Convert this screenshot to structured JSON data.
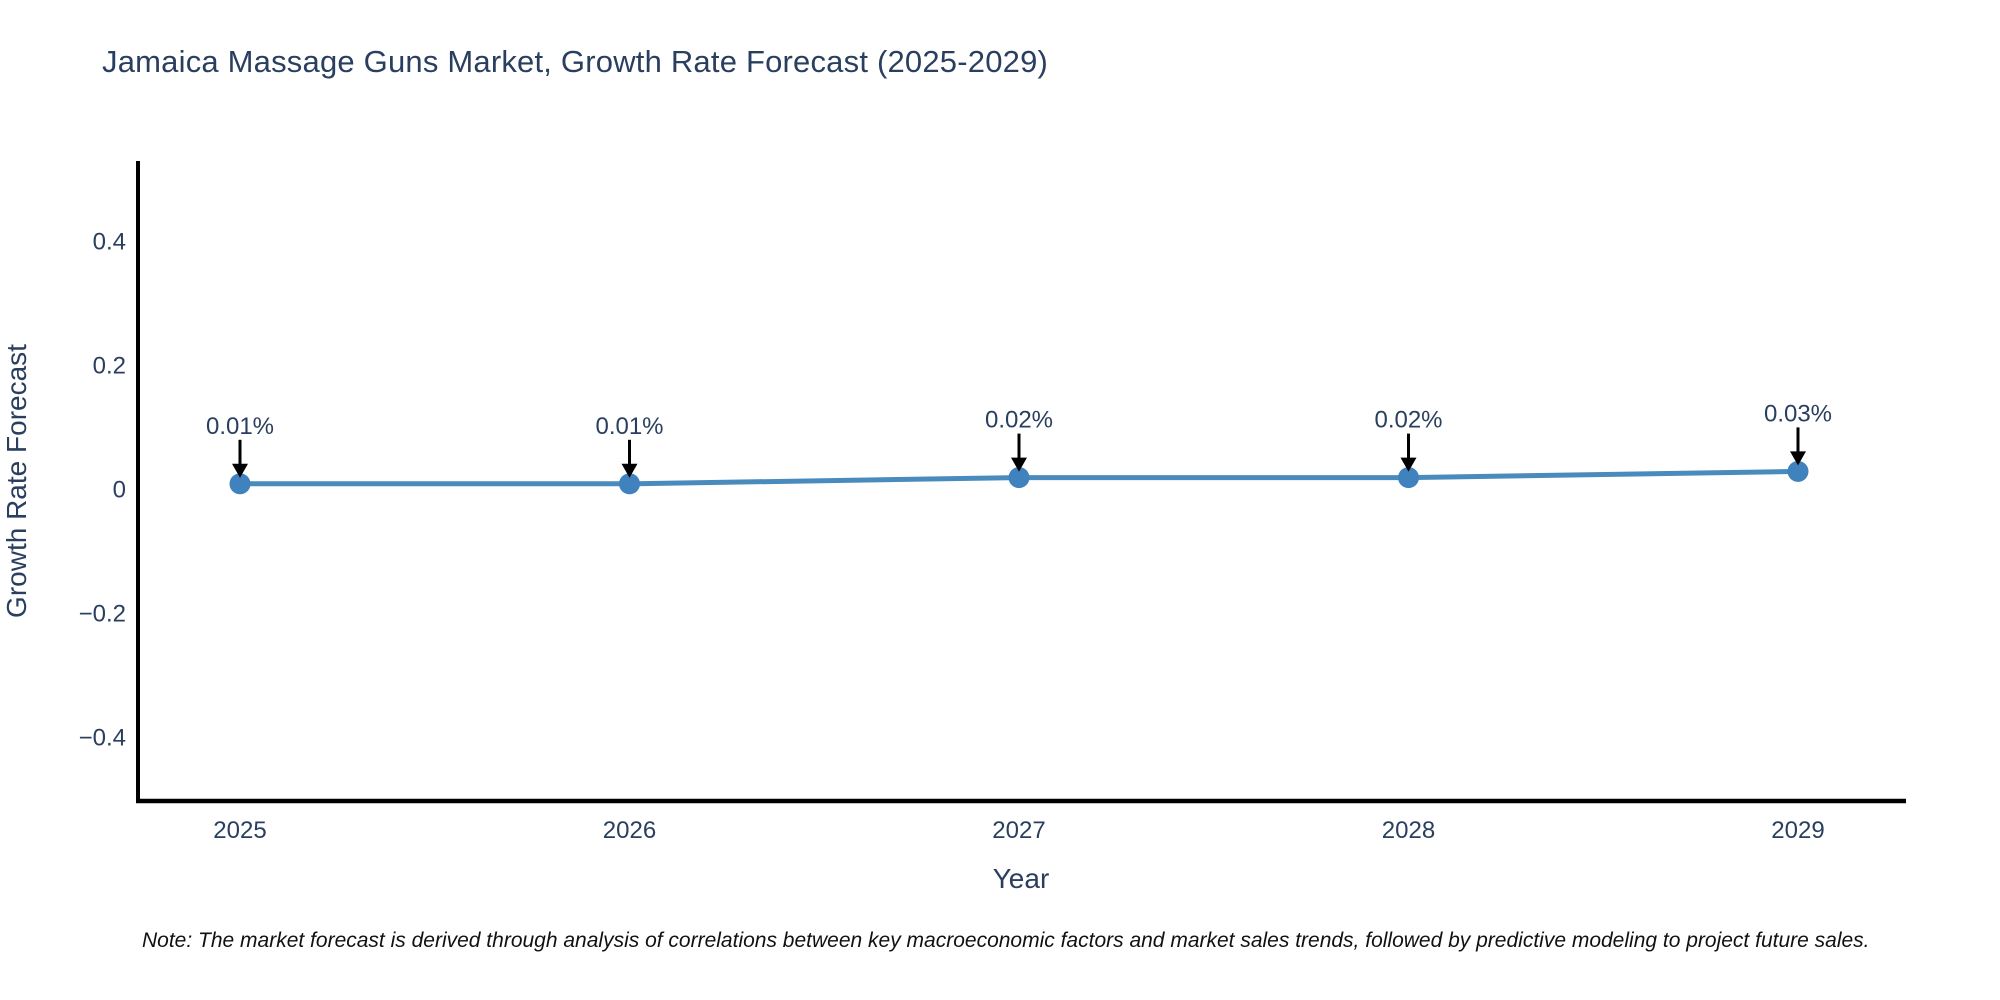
{
  "header": {
    "title": "Jamaica Massage Guns Market, Growth Rate Forecast (2025-2029)"
  },
  "footnote": {
    "text": "Note: The market forecast is derived through analysis of correlations between key macroeconomic factors and market sales trends, followed by predictive modeling to project future sales."
  },
  "colors": {
    "line": "#4a8bbe",
    "marker": "#3f82bd",
    "axis": "#000000",
    "chart_text": "#2a3f5f",
    "arrow": "#000000",
    "background": "#ffffff"
  },
  "chart_data": {
    "type": "line",
    "title": "Jamaica Massage Guns Market, Growth Rate Forecast (2025-2029)",
    "x": [
      2025,
      2026,
      2027,
      2028,
      2029
    ],
    "series": [
      {
        "name": "Growth Rate Forecast",
        "values": [
          0.01,
          0.01,
          0.02,
          0.02,
          0.03
        ],
        "point_labels": [
          "0.01%",
          "0.01%",
          "0.02%",
          "0.02%",
          "0.03%"
        ]
      }
    ],
    "xlabel": "Year",
    "ylabel": "Growth Rate Forecast",
    "yticks": [
      -0.4,
      -0.2,
      0,
      0.2,
      0.4
    ],
    "ytick_labels": [
      "−0.4",
      "−0.2",
      "0",
      "0.2",
      "0.4"
    ],
    "xtick_labels": [
      "2025",
      "2026",
      "2027",
      "2028",
      "2029"
    ],
    "ylim": [
      -0.5,
      0.53
    ],
    "grid": false,
    "legend": "none",
    "annotations": "arrow-down-to-point"
  }
}
